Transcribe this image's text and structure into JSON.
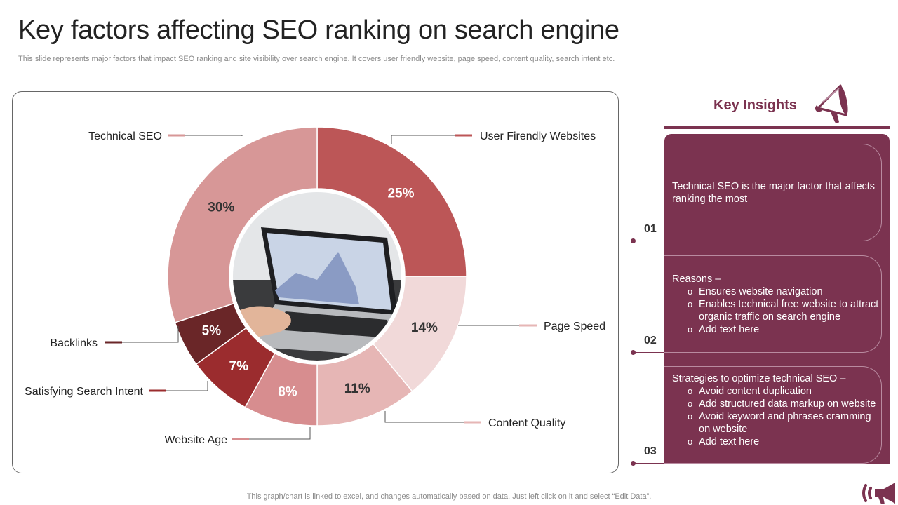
{
  "title": "Key factors affecting SEO ranking on search engine",
  "subtitle": "This slide represents major factors that impact SEO ranking and site visibility over search engine. It covers user friendly website, page speed, content quality, search intent etc.",
  "footer": "This graph/chart is linked to excel,  and changes automatically based on data. Just left click on it and select “Edit Data”.",
  "chart_data": {
    "type": "pie",
    "variant": "donut",
    "categories": [
      "User Firendly Websites",
      "Page Speed",
      "Content Quality",
      "Website Age",
      "Satisfying Search Intent",
      "Backlinks",
      "Technical SEO"
    ],
    "values": [
      25,
      14,
      11,
      8,
      7,
      5,
      30
    ],
    "value_labels": [
      "25%",
      "14%",
      "11%",
      "8%",
      "7%",
      "5%",
      "30%"
    ],
    "colors": [
      "#bc5657",
      "#f1d9d9",
      "#e6b6b5",
      "#d78d8f",
      "#9b2c2e",
      "#6a2628",
      "#d79797"
    ],
    "center_image": "laptop-photo"
  },
  "insights": {
    "title": "Key Insights",
    "cards": [
      {
        "number": "01",
        "text": "Technical SEO is the major factor that affects ranking the most",
        "items": []
      },
      {
        "number": "02",
        "text": "Reasons –",
        "items": [
          "Ensures website navigation",
          "Enables technical free website to attract organic traffic on search engine",
          "Add text here"
        ]
      },
      {
        "number": "03",
        "text": "Strategies to optimize technical SEO –",
        "items": [
          "Avoid content duplication",
          "Add structured data markup on website",
          "Avoid keyword and phrases cramming on website",
          "Add text here"
        ]
      }
    ]
  },
  "icons": {
    "insights_icon": "megaphone-icon",
    "corner_icon": "megaphone-icon"
  },
  "accent_color": "#7b3350"
}
